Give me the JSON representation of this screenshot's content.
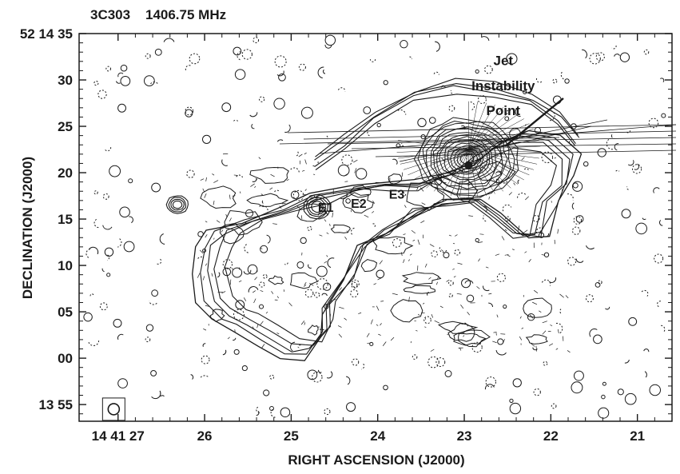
{
  "chart_data": {
    "type": "contour",
    "title": "3C303    1406.75 MHz",
    "xlabel": "RIGHT ASCENSION (J2000)",
    "ylabel": "DECLINATION (J2000)",
    "x_ticks": [
      {
        "label": "14 41 27",
        "value": 27
      },
      {
        "label": "26",
        "value": 26
      },
      {
        "label": "25",
        "value": 25
      },
      {
        "label": "24",
        "value": 24
      },
      {
        "label": "23",
        "value": 23
      },
      {
        "label": "22",
        "value": 22
      },
      {
        "label": "21",
        "value": 21
      }
    ],
    "y_ticks": [
      {
        "label": "52 14 35",
        "value": 35
      },
      {
        "label": "30",
        "value": 30
      },
      {
        "label": "25",
        "value": 25
      },
      {
        "label": "20",
        "value": 20
      },
      {
        "label": "15",
        "value": 15
      },
      {
        "label": "10",
        "value": 10
      },
      {
        "label": "05",
        "value": 5
      },
      {
        "label": "00",
        "value": 0
      },
      {
        "label": "13 55",
        "value": -5
      }
    ],
    "xlim": [
      27.45,
      20.6
    ],
    "ylim": [
      -6.8,
      35
    ],
    "annotations": [
      {
        "text": "Jet",
        "x": 22.55,
        "y": 31.6
      },
      {
        "text": "Instability",
        "x": 22.55,
        "y": 28.9
      },
      {
        "text": "Point",
        "x": 22.55,
        "y": 26.2
      }
    ],
    "knots": [
      {
        "label": "E1",
        "x": 24.7,
        "y": 16.5,
        "label_x": 24.6,
        "label_y": 15.8
      },
      {
        "label": "E2",
        "x": 24.2,
        "y": 17.5,
        "label_x": 24.22,
        "label_y": 16.2
      },
      {
        "label": "E3",
        "x": 23.8,
        "y": 19.0,
        "label_x": 23.78,
        "label_y": 17.2
      }
    ],
    "core": {
      "x": 22.95,
      "y": 20.8
    },
    "beam": {
      "x": 27.05,
      "y": -5.5
    }
  }
}
